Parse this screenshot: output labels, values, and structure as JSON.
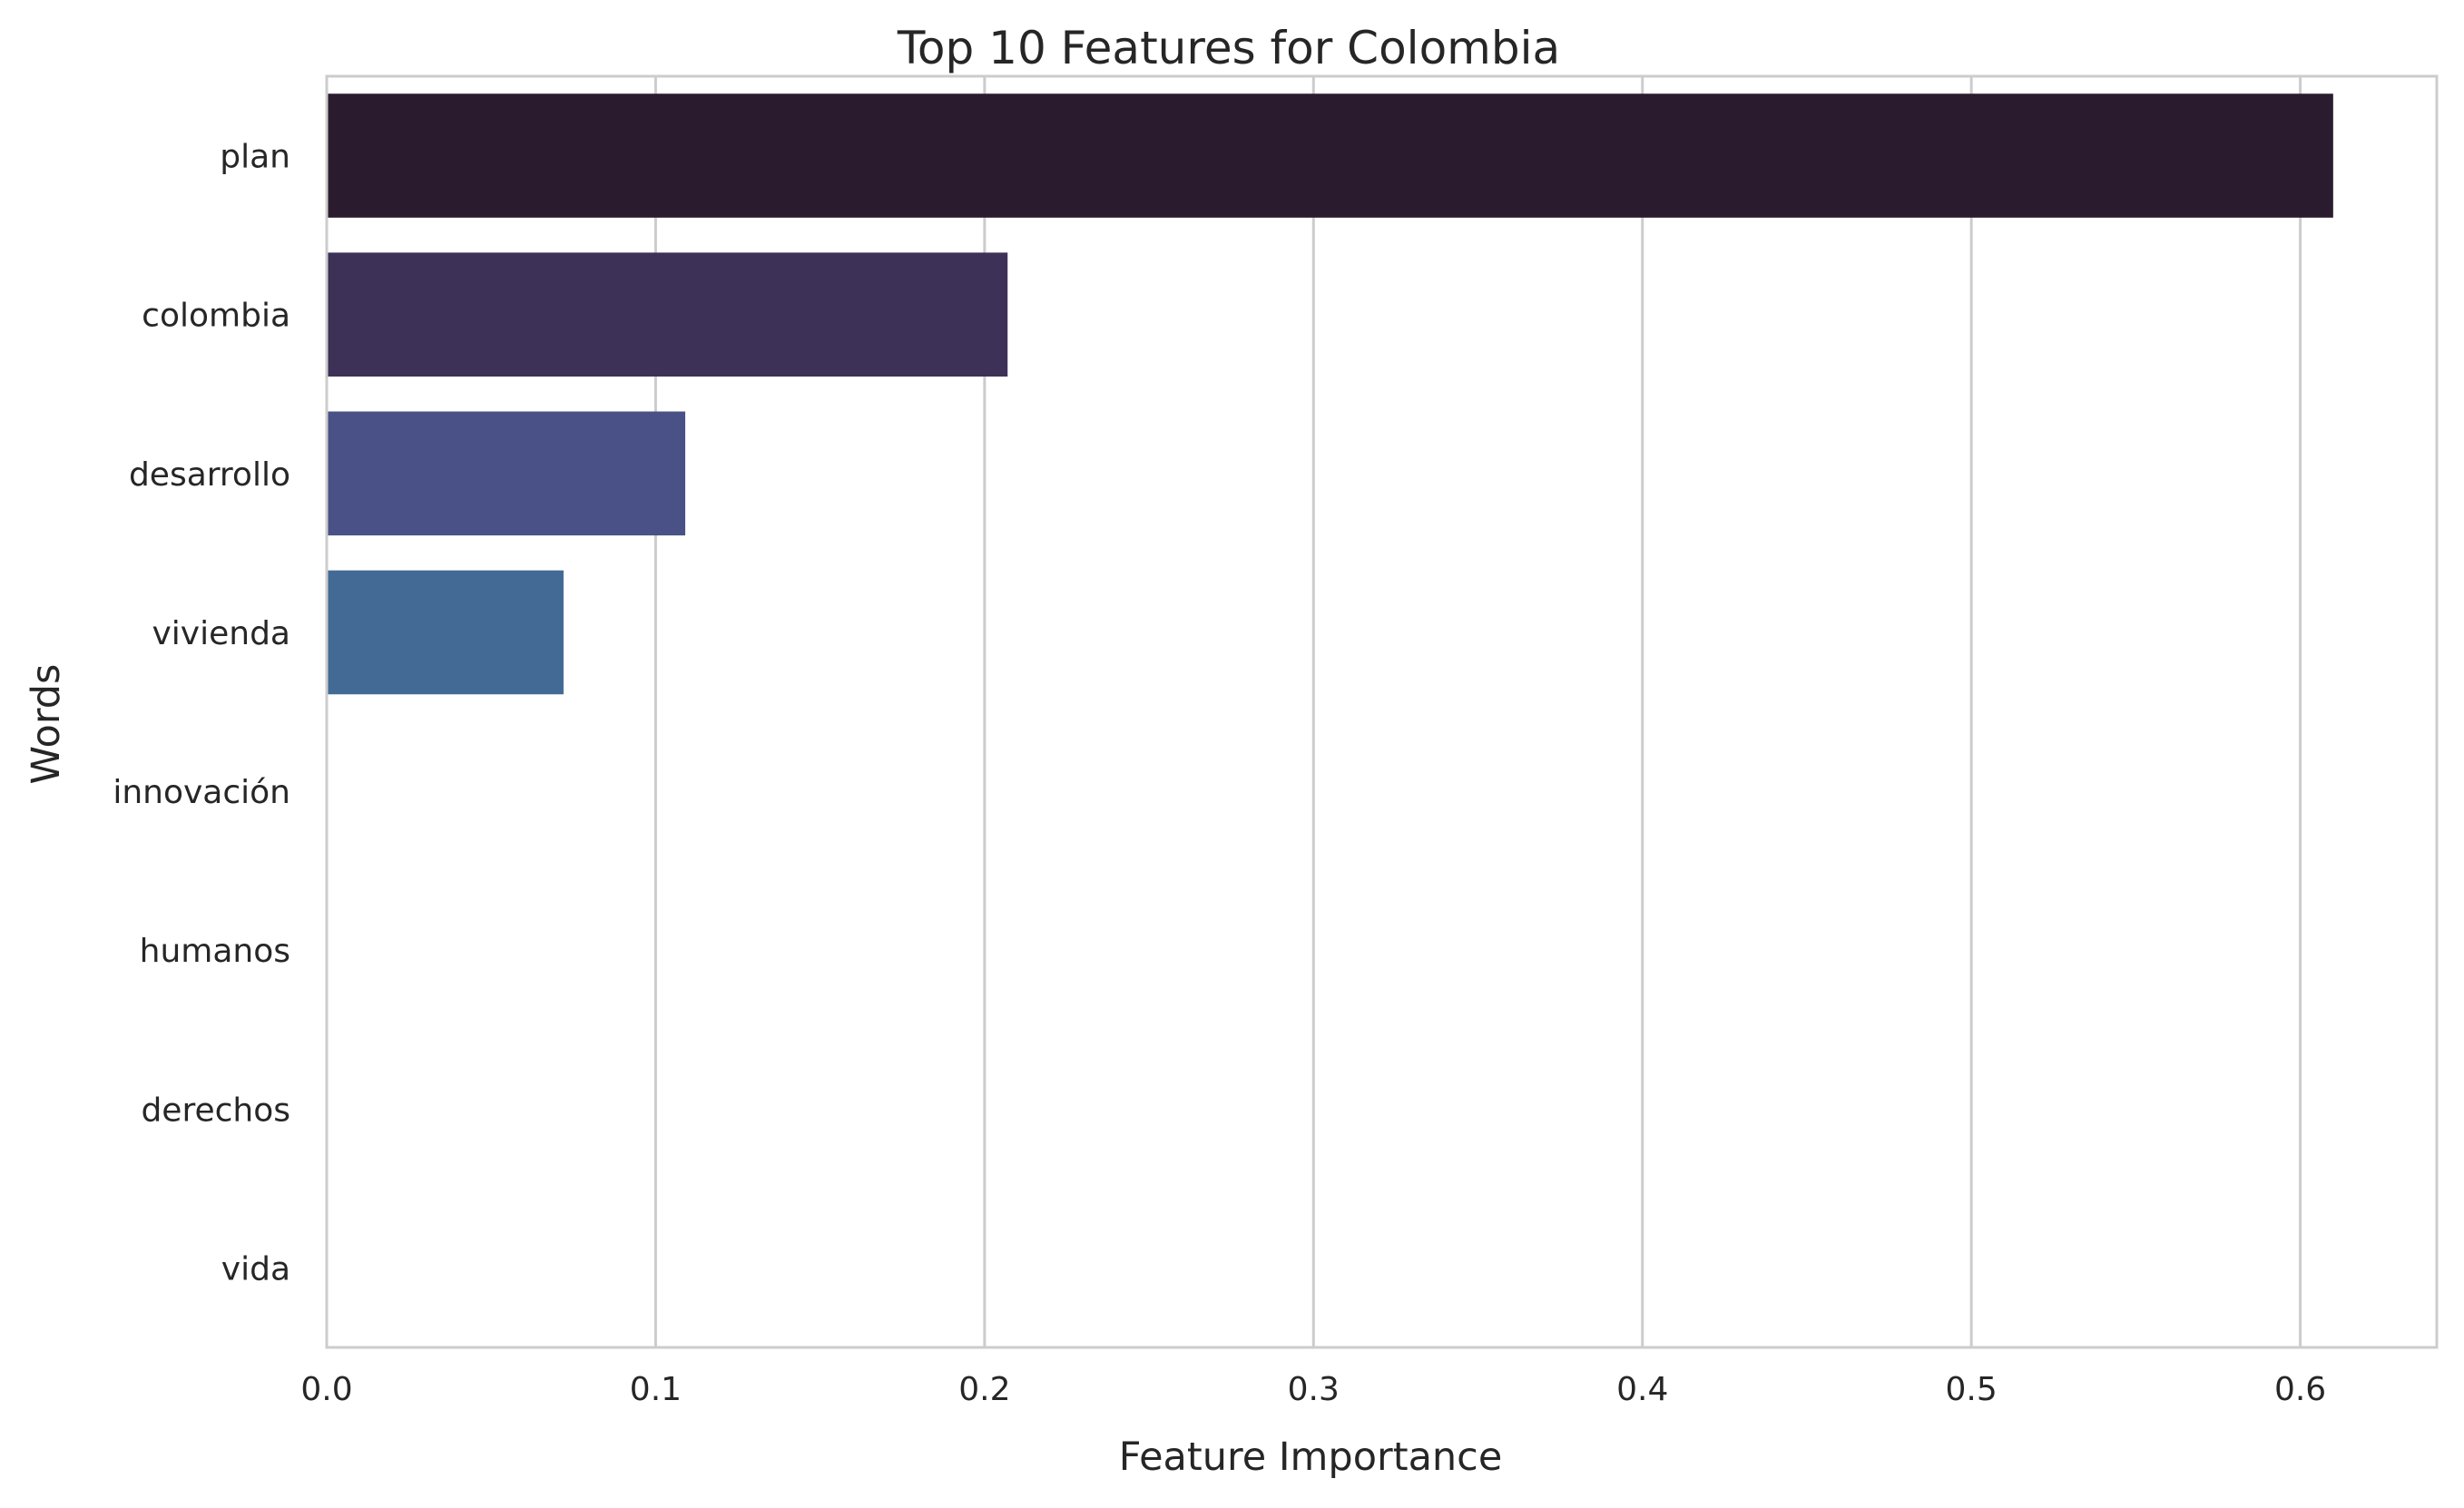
{
  "chart_data": {
    "type": "bar",
    "orientation": "horizontal",
    "title": "Top 10 Features for Colombia",
    "xlabel": "Feature Importance",
    "ylabel": "Words",
    "categories": [
      "plan",
      "colombia",
      "desarrollo",
      "vivienda",
      "innovación",
      "humanos",
      "derechos",
      "vida"
    ],
    "values": [
      0.61,
      0.207,
      0.109,
      0.072,
      0.0,
      0.0,
      0.0,
      0.0
    ],
    "colors": [
      "#2a1c2e",
      "#3d3157",
      "#4a5186",
      "#426a94",
      "#3e7f95",
      "#3a9a9b",
      "#5db59a",
      "#8fcf97"
    ],
    "xlim": [
      0,
      0.6415
    ],
    "xticks": [
      0.0,
      0.1,
      0.2,
      0.3,
      0.4,
      0.5,
      0.6
    ],
    "xtick_labels": [
      "0.0",
      "0.1",
      "0.2",
      "0.3",
      "0.4",
      "0.5",
      "0.6"
    ],
    "grid": true,
    "legend": "none"
  }
}
